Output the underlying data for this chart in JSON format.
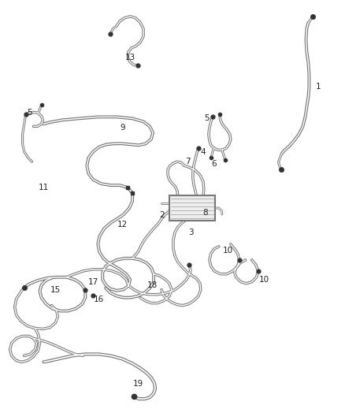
{
  "background_color": "#ffffff",
  "line_color_outer": "#777777",
  "line_color_inner": "#ffffff",
  "line_color_dark": "#333333",
  "label_color": "#222222",
  "label_fontsize": 7.5,
  "lw_outer": 3.2,
  "lw_inner": 1.4
}
